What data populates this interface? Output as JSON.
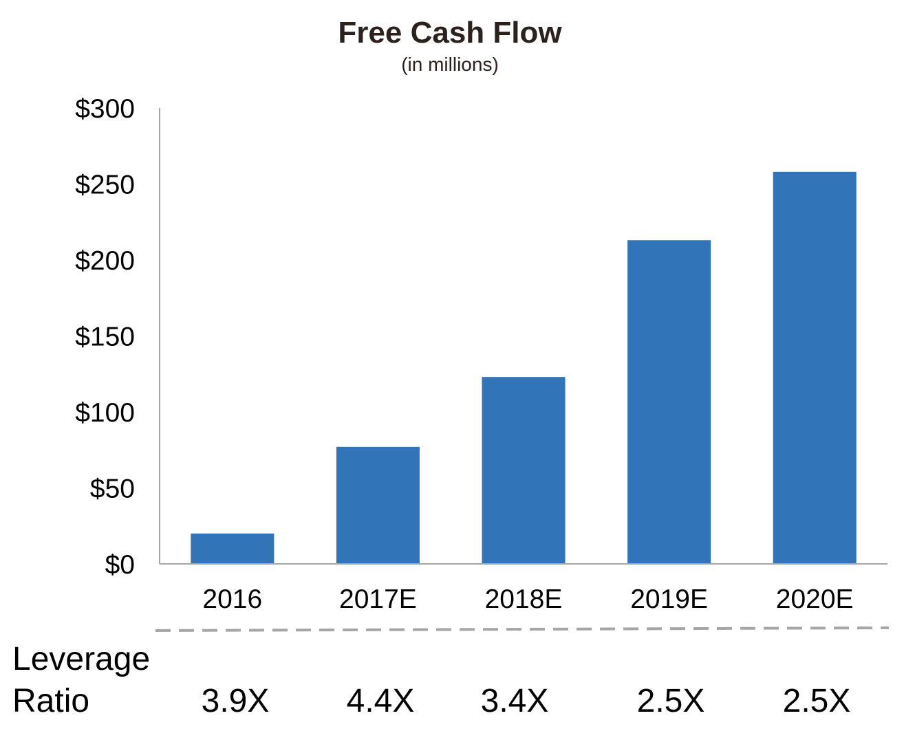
{
  "chart_data": {
    "type": "bar",
    "title": "Free Cash Flow",
    "subtitle": "(in millions)",
    "categories": [
      "2016",
      "2017E",
      "2018E",
      "2019E",
      "2020E"
    ],
    "values": [
      20,
      77,
      123,
      213,
      258
    ],
    "ylim": [
      0,
      300
    ],
    "yticks": [
      0,
      50,
      100,
      150,
      200,
      250,
      300
    ],
    "ytick_labels": [
      "$0",
      "$50",
      "$100",
      "$150",
      "$200",
      "$250",
      "$300"
    ],
    "xlabel": "",
    "ylabel": "",
    "grid": false,
    "bar_color": "#3274b8"
  },
  "leverage": {
    "label_line1": "Leverage",
    "label_line2": "Ratio",
    "values": [
      "3.9X",
      "4.4X",
      "3.4X",
      "2.5X",
      "2.5X"
    ]
  }
}
